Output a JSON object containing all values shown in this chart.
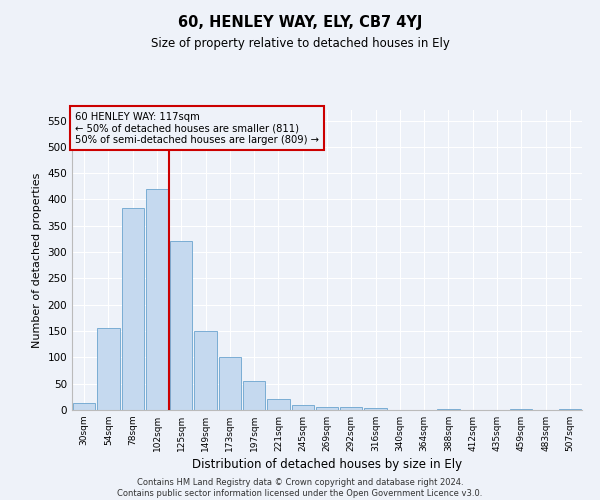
{
  "title": "60, HENLEY WAY, ELY, CB7 4YJ",
  "subtitle": "Size of property relative to detached houses in Ely",
  "xlabel": "Distribution of detached houses by size in Ely",
  "ylabel": "Number of detached properties",
  "footer_line1": "Contains HM Land Registry data © Crown copyright and database right 2024.",
  "footer_line2": "Contains public sector information licensed under the Open Government Licence v3.0.",
  "bar_color": "#c5d9ef",
  "bar_edge_color": "#7aadd4",
  "annotation_box_color": "#cc0000",
  "vline_color": "#cc0000",
  "categories": [
    "30sqm",
    "54sqm",
    "78sqm",
    "102sqm",
    "125sqm",
    "149sqm",
    "173sqm",
    "197sqm",
    "221sqm",
    "245sqm",
    "269sqm",
    "292sqm",
    "316sqm",
    "340sqm",
    "364sqm",
    "388sqm",
    "412sqm",
    "435sqm",
    "459sqm",
    "483sqm",
    "507sqm"
  ],
  "values": [
    13,
    155,
    383,
    420,
    322,
    150,
    100,
    55,
    20,
    10,
    5,
    5,
    3,
    0,
    0,
    2,
    0,
    0,
    2,
    0,
    2
  ],
  "ylim": [
    0,
    570
  ],
  "yticks": [
    0,
    50,
    100,
    150,
    200,
    250,
    300,
    350,
    400,
    450,
    500,
    550
  ],
  "annotation_line1": "60 HENLEY WAY: 117sqm",
  "annotation_line2": "← 50% of detached houses are smaller (811)",
  "annotation_line3": "50% of semi-detached houses are larger (809) →",
  "vline_position": 3.5,
  "background_color": "#eef2f9",
  "grid_color": "#ffffff"
}
